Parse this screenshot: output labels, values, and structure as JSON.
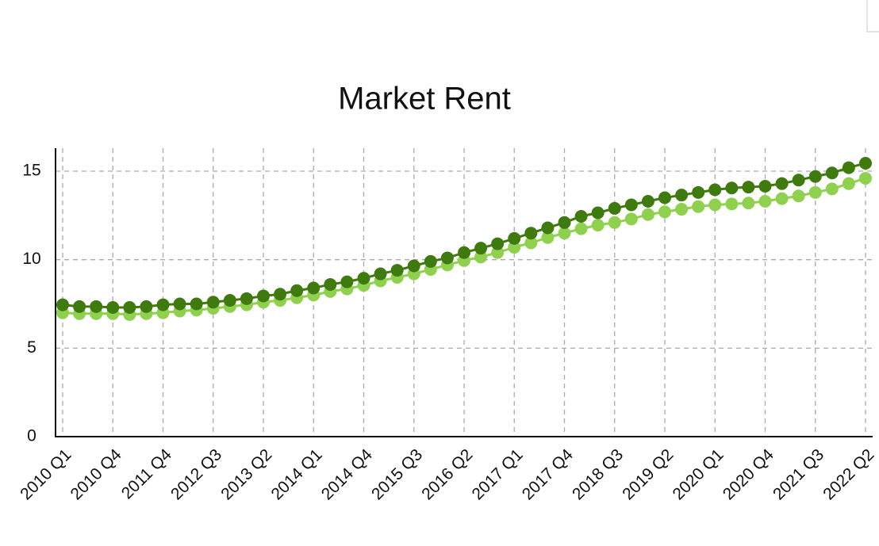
{
  "chart_data": {
    "type": "line",
    "title": "Market Rent",
    "categories": [
      "2010 Q1",
      null,
      null,
      "2010 Q4",
      null,
      null,
      "2011 Q4",
      null,
      null,
      "2012 Q3",
      null,
      null,
      "2013 Q2",
      null,
      null,
      "2014 Q1",
      null,
      null,
      "2014 Q4",
      null,
      null,
      "2015 Q3",
      null,
      null,
      "2016 Q2",
      null,
      null,
      "2017 Q1",
      null,
      null,
      "2017 Q4",
      null,
      null,
      "2018 Q3",
      null,
      null,
      "2019 Q2",
      null,
      null,
      "2020 Q1",
      null,
      null,
      "2020 Q4",
      null,
      null,
      "2021 Q3",
      null,
      null,
      "2022 Q2"
    ],
    "series": [
      {
        "color": "#3e7a0e",
        "values": [
          7.45,
          7.35,
          7.35,
          7.3,
          7.3,
          7.35,
          7.45,
          7.5,
          7.5,
          7.6,
          7.7,
          7.8,
          7.95,
          8.05,
          8.25,
          8.4,
          8.6,
          8.75,
          8.95,
          9.2,
          9.4,
          9.65,
          9.9,
          10.1,
          10.4,
          10.65,
          10.9,
          11.2,
          11.5,
          11.8,
          12.1,
          12.45,
          12.65,
          12.9,
          13.1,
          13.3,
          13.5,
          13.65,
          13.8,
          13.95,
          14.05,
          14.1,
          14.15,
          14.3,
          14.5,
          14.7,
          14.9,
          15.2,
          15.45
        ]
      },
      {
        "color": "#8fd14f",
        "values": [
          7.0,
          6.95,
          6.95,
          6.95,
          6.9,
          6.95,
          7.0,
          7.1,
          7.15,
          7.25,
          7.35,
          7.45,
          7.6,
          7.7,
          7.85,
          8.0,
          8.2,
          8.35,
          8.55,
          8.8,
          9.0,
          9.2,
          9.45,
          9.7,
          9.95,
          10.15,
          10.4,
          10.7,
          10.95,
          11.25,
          11.5,
          11.75,
          11.95,
          12.1,
          12.3,
          12.55,
          12.7,
          12.85,
          13.0,
          13.1,
          13.15,
          13.2,
          13.3,
          13.45,
          13.6,
          13.8,
          14.0,
          14.3,
          14.6
        ]
      }
    ],
    "ylim": [
      0,
      16.3
    ],
    "yticks": [
      0,
      5,
      10,
      15
    ],
    "grid": true
  }
}
